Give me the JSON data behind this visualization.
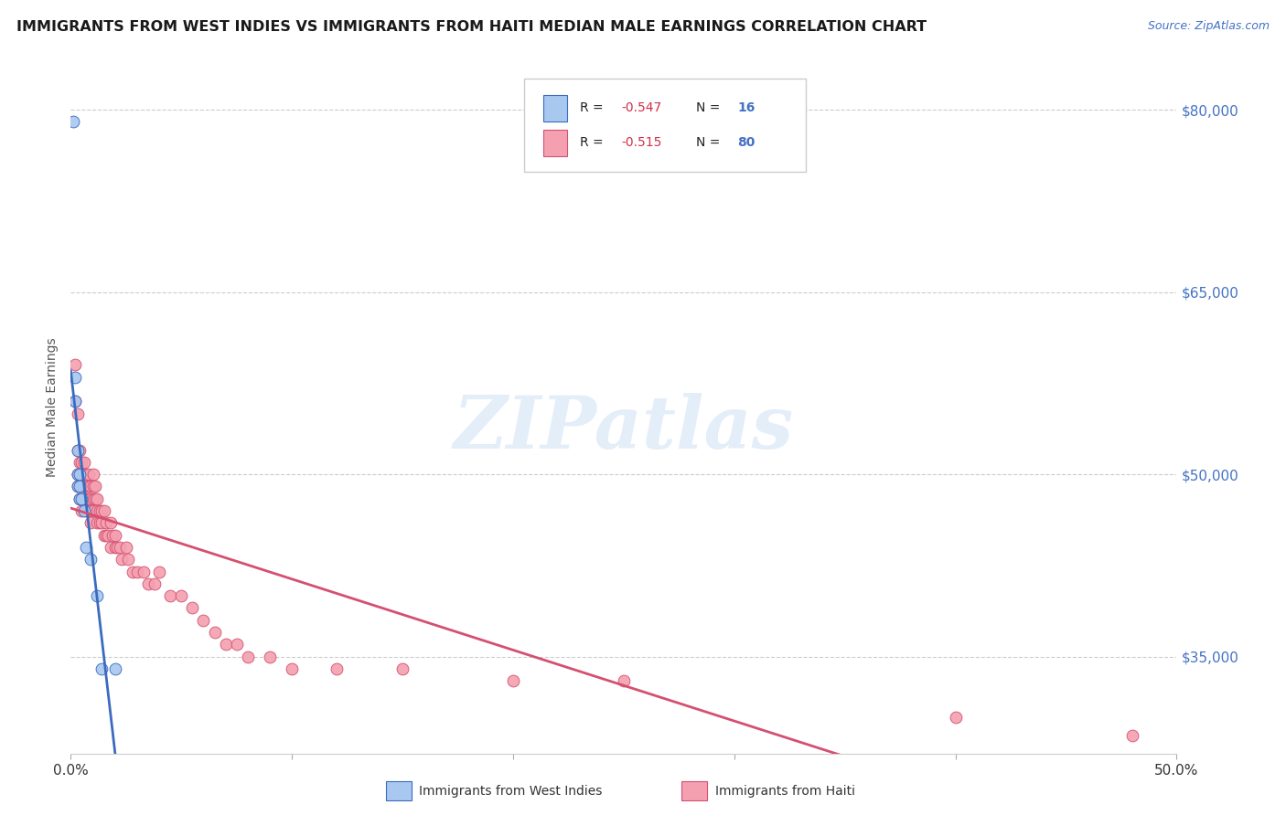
{
  "title": "IMMIGRANTS FROM WEST INDIES VS IMMIGRANTS FROM HAITI MEDIAN MALE EARNINGS CORRELATION CHART",
  "source": "Source: ZipAtlas.com",
  "ylabel": "Median Male Earnings",
  "watermark": "ZIPatlas",
  "legend_r1": "-0.547",
  "legend_n1": "16",
  "legend_r2": "-0.515",
  "legend_n2": "80",
  "color_west_indies": "#a8c8f0",
  "color_haiti": "#f4a0b0",
  "line_color_west_indies": "#3a6bbf",
  "line_color_haiti": "#d45070",
  "title_color": "#1a1a1a",
  "ylabel_color": "#555555",
  "tick_color_right": "#4472c4",
  "grid_color": "#cccccc",
  "background_color": "#ffffff",
  "xlim": [
    0.0,
    0.5
  ],
  "ylim": [
    27000,
    84000
  ],
  "xtick_positions": [
    0.0,
    0.1,
    0.2,
    0.3,
    0.4,
    0.5
  ],
  "ytick_positions": [
    35000,
    50000,
    65000,
    80000
  ],
  "ytick_labels": [
    "$35,000",
    "$50,000",
    "$65,000",
    "$80,000"
  ],
  "west_indies_x": [
    0.001,
    0.002,
    0.002,
    0.003,
    0.003,
    0.003,
    0.004,
    0.004,
    0.004,
    0.005,
    0.006,
    0.007,
    0.009,
    0.012,
    0.014,
    0.02
  ],
  "west_indies_y": [
    79000,
    56000,
    58000,
    52000,
    50000,
    49000,
    50000,
    49000,
    48000,
    48000,
    47000,
    44000,
    43000,
    40000,
    34000,
    34000
  ],
  "haiti_x": [
    0.002,
    0.002,
    0.003,
    0.003,
    0.003,
    0.003,
    0.004,
    0.004,
    0.004,
    0.004,
    0.005,
    0.005,
    0.005,
    0.005,
    0.005,
    0.006,
    0.006,
    0.006,
    0.006,
    0.007,
    0.007,
    0.007,
    0.007,
    0.008,
    0.008,
    0.008,
    0.009,
    0.009,
    0.009,
    0.009,
    0.01,
    0.01,
    0.01,
    0.01,
    0.011,
    0.011,
    0.012,
    0.012,
    0.012,
    0.013,
    0.013,
    0.014,
    0.014,
    0.015,
    0.015,
    0.016,
    0.016,
    0.017,
    0.018,
    0.018,
    0.019,
    0.02,
    0.02,
    0.021,
    0.022,
    0.023,
    0.025,
    0.026,
    0.028,
    0.03,
    0.033,
    0.035,
    0.038,
    0.04,
    0.045,
    0.05,
    0.055,
    0.06,
    0.065,
    0.07,
    0.075,
    0.08,
    0.09,
    0.1,
    0.12,
    0.15,
    0.2,
    0.25,
    0.4,
    0.48
  ],
  "haiti_y": [
    59000,
    56000,
    55000,
    52000,
    50000,
    49000,
    52000,
    51000,
    50000,
    48000,
    51000,
    50000,
    49000,
    48000,
    47000,
    51000,
    50000,
    49000,
    48000,
    50000,
    49000,
    48000,
    47000,
    50000,
    49000,
    48000,
    49000,
    48000,
    47000,
    46000,
    50000,
    49000,
    48000,
    47000,
    49000,
    48000,
    48000,
    47000,
    46000,
    47000,
    46000,
    47000,
    46000,
    47000,
    45000,
    46000,
    45000,
    45000,
    46000,
    44000,
    45000,
    45000,
    44000,
    44000,
    44000,
    43000,
    44000,
    43000,
    42000,
    42000,
    42000,
    41000,
    41000,
    42000,
    40000,
    40000,
    39000,
    38000,
    37000,
    36000,
    36000,
    35000,
    35000,
    34000,
    34000,
    34000,
    33000,
    33000,
    30000,
    28500
  ]
}
